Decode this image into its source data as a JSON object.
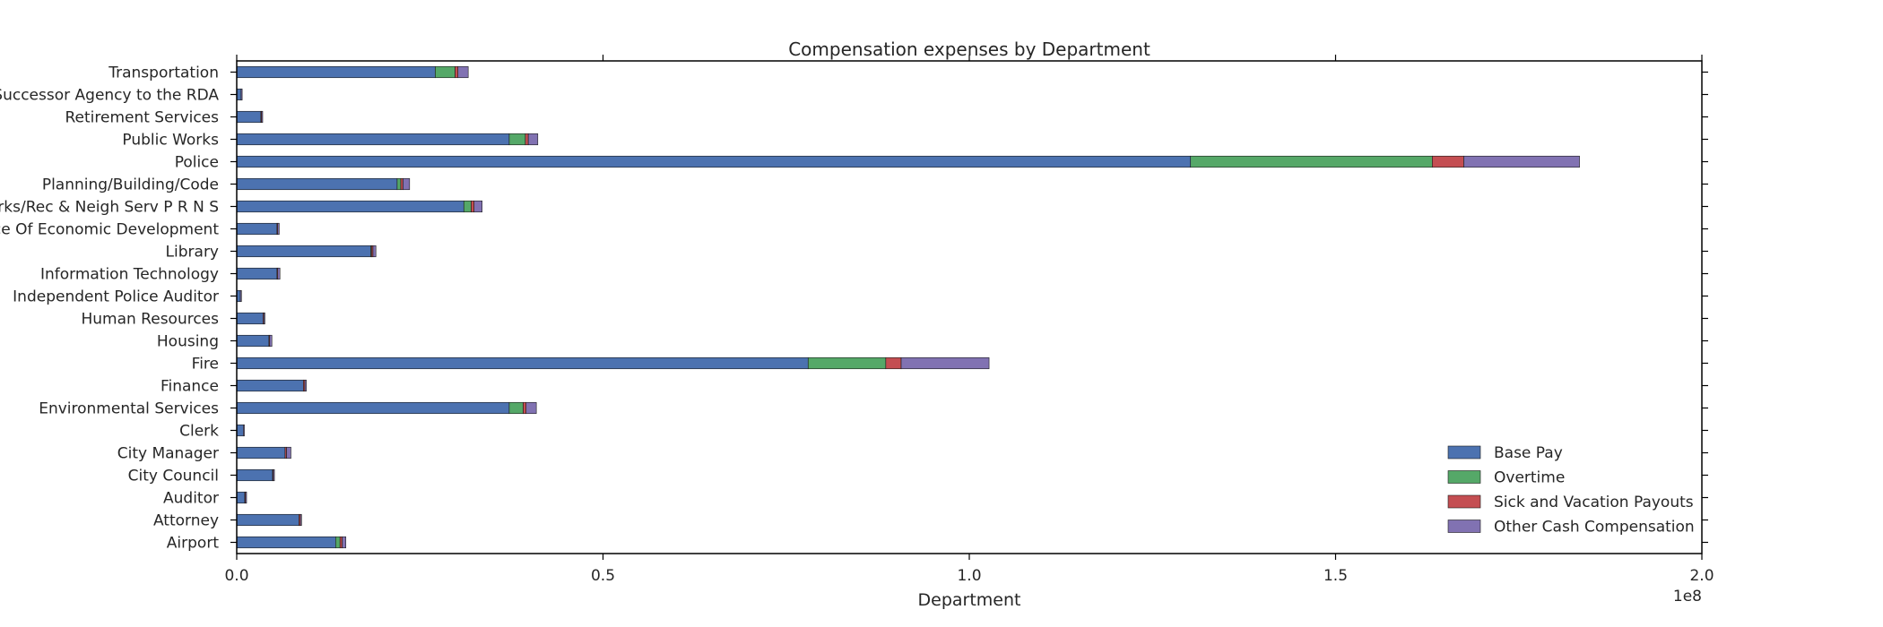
{
  "chart_data": {
    "type": "bar",
    "orientation": "horizontal",
    "stacked": true,
    "title": "Compensation expenses by Department",
    "xlabel": "Department",
    "ylabel": "",
    "x_scale_note": "1e8",
    "xlim": [
      0,
      2.0
    ],
    "xticks": [
      "0.0",
      "0.5",
      "1.0",
      "1.5",
      "2.0"
    ],
    "legend_position": "lower right",
    "grid": false,
    "categories": [
      "Airport",
      "Attorney",
      "Auditor",
      "City Council",
      "City Manager",
      "Clerk",
      "Environmental Services",
      "Finance",
      "Fire",
      "Housing",
      "Human Resources",
      "Independent Police Auditor",
      "Information Technology",
      "Library",
      "Office Of Economic Development",
      "Parks/Rec & Neigh Serv P R N S",
      "Planning/Building/Code",
      "Police",
      "Public Works",
      "Retirement Services",
      "Successor Agency to the RDA",
      "Transportation"
    ],
    "tick_labels": [
      "Airport",
      "Attorney",
      "Auditor",
      "City Council",
      "City Manager",
      "Clerk",
      "Environmental Services",
      "Finance",
      "Fire",
      "Housing",
      "Human Resources",
      "Independent Police Auditor",
      "Information Technology",
      "Library",
      "ice Of Economic Development",
      "rks/Rec & Neigh Serv P R N S",
      "Planning/Building/Code",
      "Police",
      "Public Works",
      "Retirement Services",
      "Successor Agency to the RDA",
      "Transportation"
    ],
    "series": [
      {
        "name": "Base Pay",
        "color": "#4c72b0",
        "values": [
          0.135,
          0.085,
          0.011,
          0.049,
          0.066,
          0.009,
          0.372,
          0.091,
          0.78,
          0.044,
          0.036,
          0.005,
          0.055,
          0.183,
          0.055,
          0.31,
          0.219,
          1.302,
          0.372,
          0.033,
          0.006,
          0.271
        ]
      },
      {
        "name": "Overtime",
        "color": "#55a868",
        "values": [
          0.006,
          0.0,
          0.0,
          0.0,
          0.0,
          0.0,
          0.019,
          0.0,
          0.106,
          0.0,
          0.0,
          0.0,
          0.0,
          0.001,
          0.0,
          0.01,
          0.005,
          0.33,
          0.022,
          0.0,
          0.0,
          0.027
        ]
      },
      {
        "name": "Sick and Vacation Payouts",
        "color": "#c44e52",
        "values": [
          0.003,
          0.002,
          0.001,
          0.001,
          0.002,
          0.0,
          0.004,
          0.002,
          0.021,
          0.001,
          0.001,
          0.0,
          0.001,
          0.002,
          0.001,
          0.004,
          0.003,
          0.043,
          0.004,
          0.001,
          0.0,
          0.004
        ]
      },
      {
        "name": "Other Cash Compensation",
        "color": "#8172b2",
        "values": [
          0.005,
          0.001,
          0.001,
          0.001,
          0.006,
          0.001,
          0.014,
          0.002,
          0.12,
          0.003,
          0.001,
          0.001,
          0.003,
          0.004,
          0.002,
          0.011,
          0.009,
          0.158,
          0.013,
          0.001,
          0.001,
          0.014
        ]
      }
    ]
  }
}
